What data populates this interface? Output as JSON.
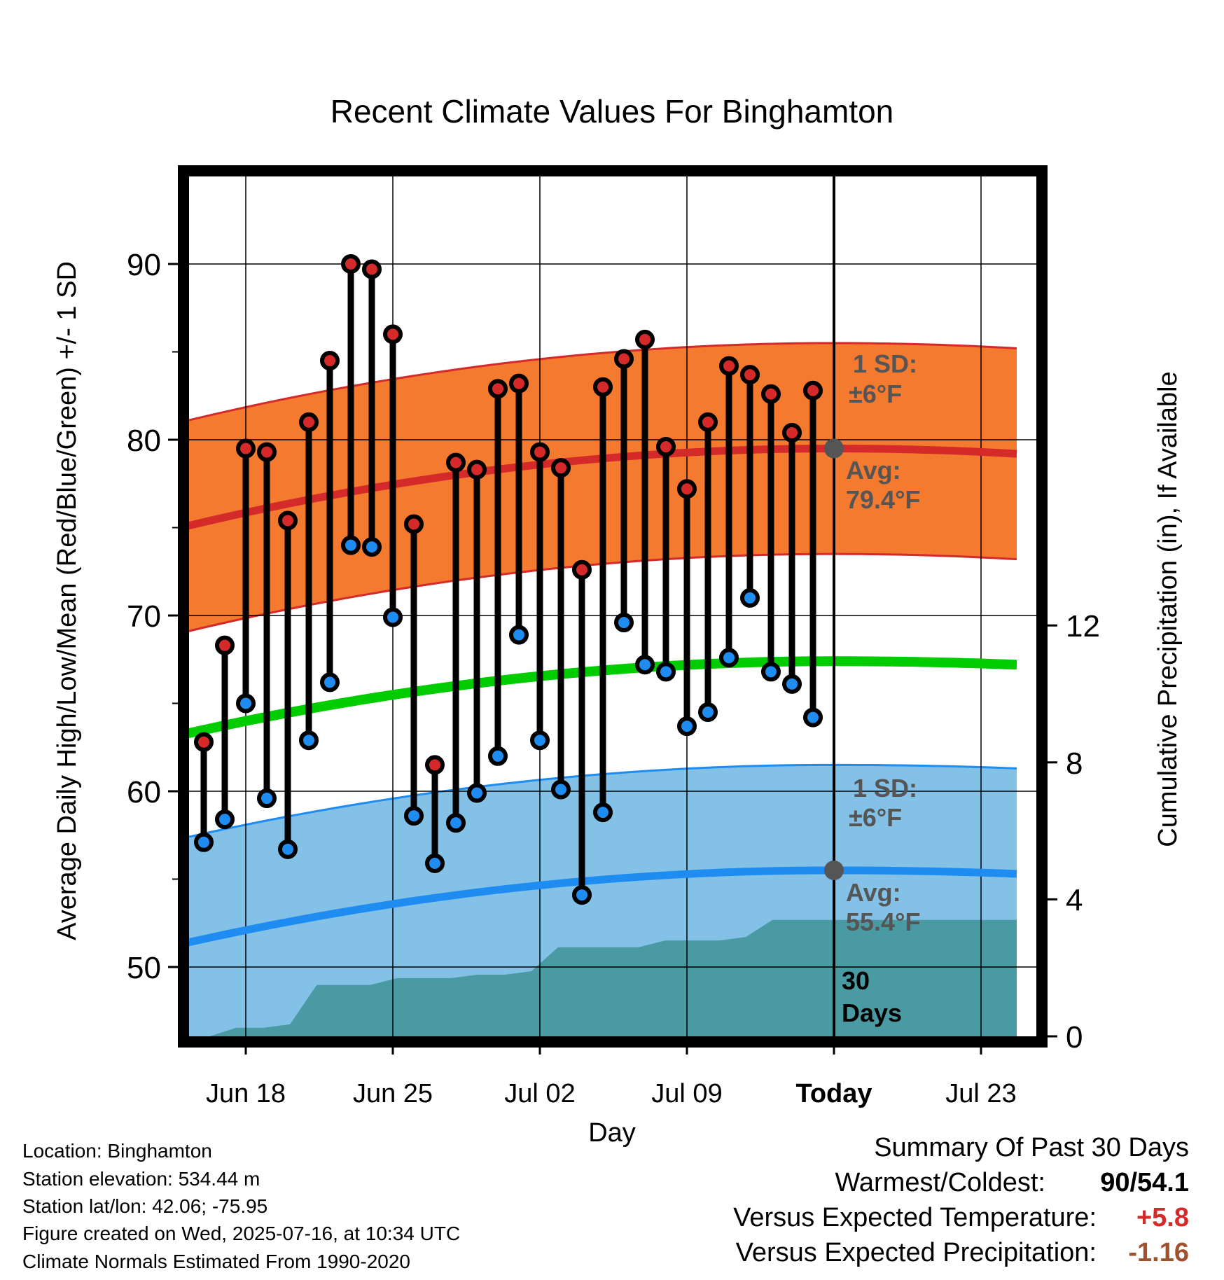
{
  "chart_data": {
    "type": "line",
    "title": "Recent Climate Values For Binghamton",
    "xlabel": "Day",
    "ylabel": "Average Daily High/Low/Mean (Red/Blue/Green) +/- 1 SD",
    "ylabel_right": "Cumulative Precipitation (in), If Available",
    "x_ticks": [
      "Jun 18",
      "Jun 25",
      "Jul 02",
      "Jul 09",
      "Today",
      "Jul 23"
    ],
    "y_ticks": [
      50,
      60,
      70,
      80,
      90
    ],
    "y2_ticks": [
      0,
      4,
      8,
      12
    ],
    "ylim": [
      46.4,
      95.6
    ],
    "y2lim": [
      0,
      25.2
    ],
    "x_range_days": [
      "2025-06-14.9",
      "2025-07-24.7"
    ],
    "today": "2025-07-16",
    "daily_high": [
      62.8,
      68.3,
      79.5,
      79.3,
      75.4,
      81.0,
      84.5,
      90.0,
      89.7,
      86.0,
      75.2,
      61.5,
      78.7,
      78.3,
      82.9,
      83.2,
      79.3,
      78.4,
      72.6,
      83.0,
      84.6,
      85.7,
      79.6,
      77.2,
      81.0,
      84.2,
      83.7,
      82.6,
      80.4,
      82.8
    ],
    "daily_low": [
      57.1,
      58.4,
      65.0,
      59.6,
      56.7,
      62.9,
      66.2,
      74.0,
      73.9,
      69.9,
      58.6,
      55.9,
      58.2,
      59.9,
      62.0,
      68.9,
      62.9,
      60.1,
      54.1,
      58.8,
      69.6,
      67.2,
      66.8,
      63.7,
      64.5,
      67.6,
      71.0,
      66.8,
      66.1,
      64.2
    ],
    "dates": [
      "2025-06-16",
      "2025-06-17",
      "2025-06-18",
      "2025-06-19",
      "2025-06-20",
      "2025-06-21",
      "2025-06-22",
      "2025-06-23",
      "2025-06-24",
      "2025-06-25",
      "2025-06-26",
      "2025-06-27",
      "2025-06-28",
      "2025-06-29",
      "2025-06-30",
      "2025-07-01",
      "2025-07-02",
      "2025-07-03",
      "2025-07-04",
      "2025-07-05",
      "2025-07-06",
      "2025-07-07",
      "2025-07-08",
      "2025-07-09",
      "2025-07-10",
      "2025-07-11",
      "2025-07-12",
      "2025-07-13",
      "2025-07-14",
      "2025-07-15"
    ],
    "normal_high_start": 75.0,
    "normal_high_peak": 79.5,
    "normal_high_end": 79.2,
    "normal_low_start": 51.3,
    "normal_low_peak": 55.5,
    "normal_low_end": 55.3,
    "normal_mean_start": 63.2,
    "normal_mean_peak": 67.4,
    "normal_mean_end": 67.2,
    "sd_f": 6,
    "precip_cumulative": [
      0,
      0,
      0.25,
      0.25,
      0.35,
      1.5,
      1.5,
      1.5,
      1.7,
      1.7,
      1.7,
      1.8,
      1.8,
      1.9,
      2.6,
      2.6,
      2.6,
      2.6,
      2.8,
      2.8,
      2.8,
      2.9,
      3.4,
      3.4,
      3.4,
      3.4
    ],
    "annotations": {
      "high_sd_label": "1 SD:",
      "high_sd_value": "±6°F",
      "high_avg_label": "Avg:",
      "high_avg_value": "79.4°F",
      "low_sd_label": "1 SD:",
      "low_sd_value": "±6°F",
      "low_avg_label": "Avg:",
      "low_avg_value": "55.4°F",
      "days_label_1": "30",
      "days_label_2": "Days"
    },
    "colors": {
      "high_band": "#f47a30",
      "high_line": "#d42a2a",
      "low_band": "#84c1e6",
      "low_line": "#1e8cf0",
      "mean_line": "#00cc00",
      "precip": "#4a9aa4",
      "high_dot": "#d62a2a",
      "low_dot": "#1e8cf0",
      "annotation": "#555555"
    }
  },
  "info": {
    "location": "Location: Binghamton",
    "elevation": "Station elevation: 534.44 m",
    "latlon": "Station lat/lon: 42.06; -75.95",
    "created": "Figure created on Wed, 2025-07-16, at 10:34 UTC",
    "normals": "Climate Normals Estimated From 1990-2020"
  },
  "summary": {
    "title": "Summary Of Past 30 Days",
    "warm_cold_label": "Warmest/Coldest:",
    "warm_cold_value": "90/54.1",
    "temp_label": "Versus Expected Temperature:",
    "temp_value": "+5.8",
    "precip_label": "Versus Expected Precipitation:",
    "precip_value": "-1.16",
    "temp_color": "#d42a2a",
    "precip_color": "#a0522d"
  }
}
